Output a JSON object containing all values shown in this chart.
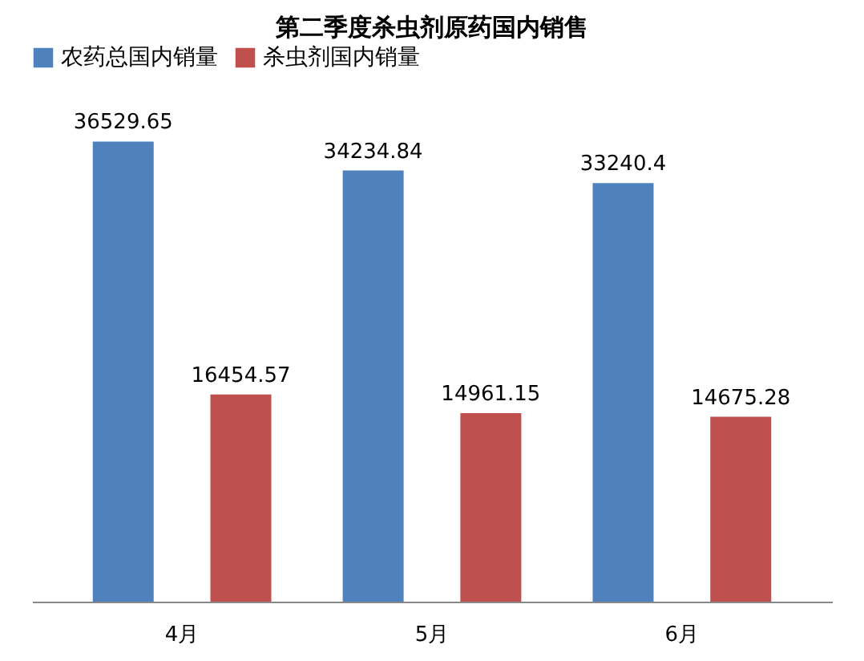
{
  "chart_data": {
    "type": "bar",
    "title": "第二季度杀虫剂原药国内销售",
    "categories": [
      "4月",
      "5月",
      "6月"
    ],
    "series": [
      {
        "name": "农药总国内销量",
        "color": "#4f81bd",
        "values": [
          36529.65,
          34234.84,
          33240.4
        ]
      },
      {
        "name": "杀虫剂国内销量",
        "color": "#c0504d",
        "values": [
          16454.57,
          14961.15,
          14675.28
        ]
      }
    ],
    "data_labels": true,
    "legend": "top",
    "grid": false,
    "tick_labels": "x"
  }
}
